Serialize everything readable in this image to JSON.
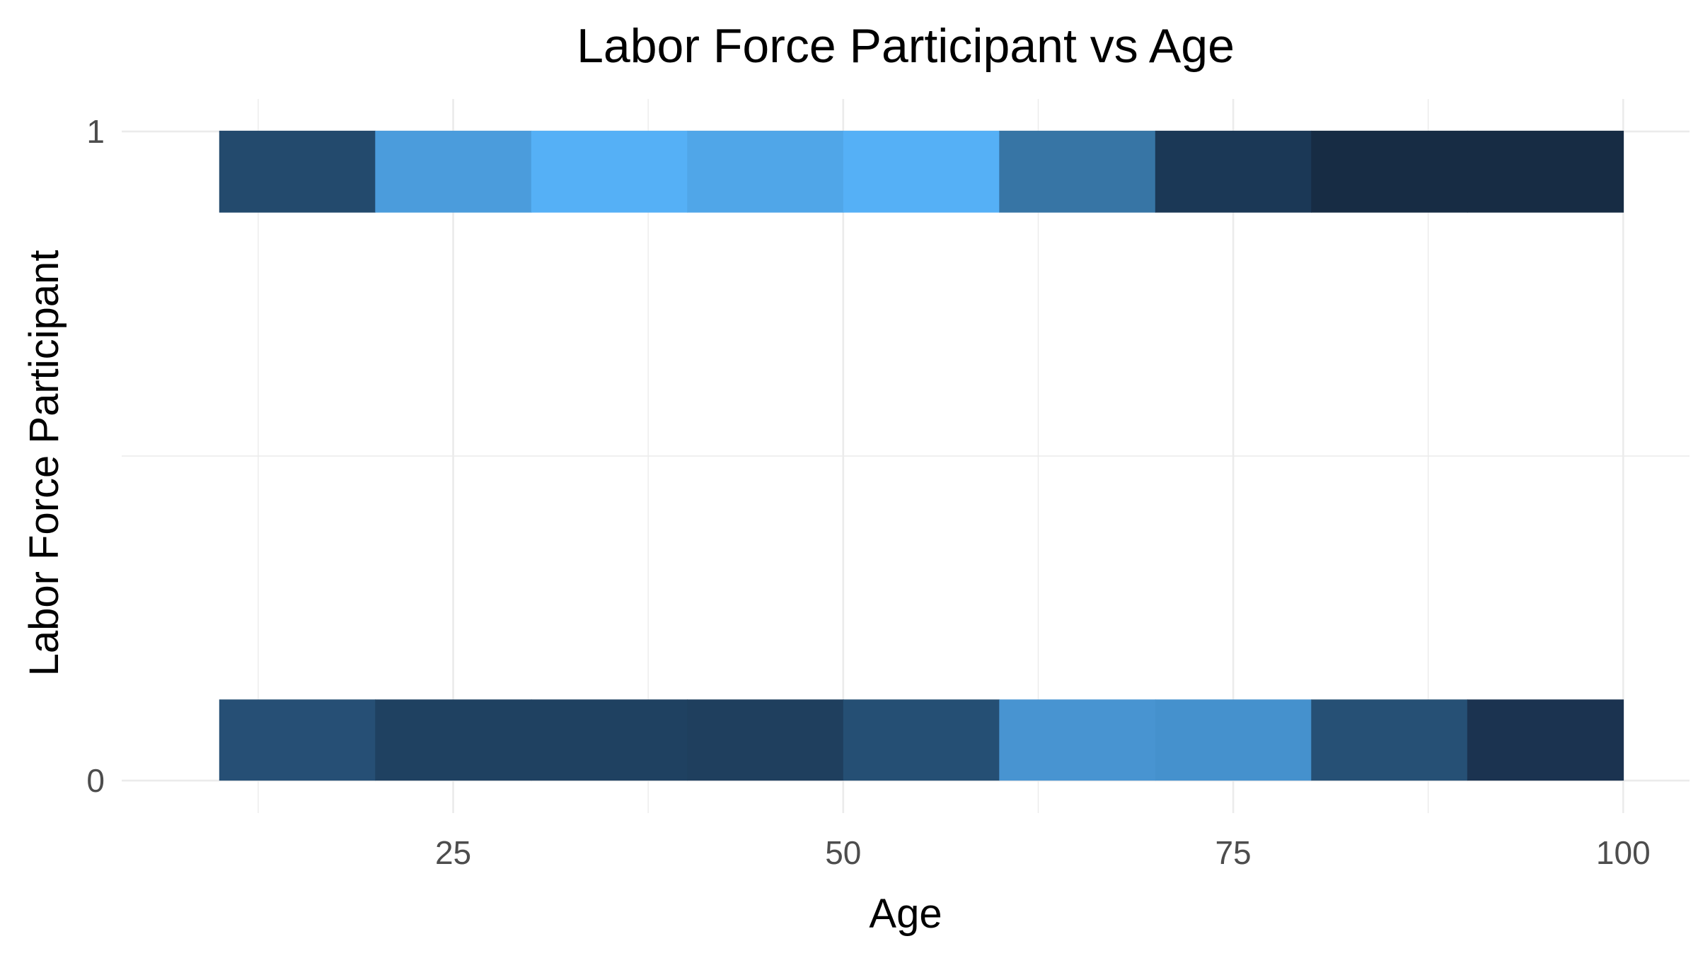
{
  "chart_data": {
    "type": "heatmap",
    "title": "Labor Force Participant vs Age",
    "xlabel": "Age",
    "ylabel": "Labor Force Participant",
    "xlim": [
      3.75,
      104.25
    ],
    "ylim": [
      -0.05,
      1.05
    ],
    "x_ticks": [
      25,
      50,
      75,
      100
    ],
    "x_minor_ticks": [
      12.5,
      37.5,
      62.5,
      87.5
    ],
    "y_ticks": [
      0,
      1
    ],
    "y_minor_ticks": [
      0.5
    ],
    "grid": true,
    "legend": "none",
    "bin_width": 10,
    "tile_height": 0.25,
    "rows": [
      {
        "y": 1,
        "cells": [
          {
            "x_start": 10,
            "x_end": 20,
            "color": "#234a6d"
          },
          {
            "x_start": 20,
            "x_end": 30,
            "color": "#4b9cdc"
          },
          {
            "x_start": 30,
            "x_end": 40,
            "color": "#55b0f6"
          },
          {
            "x_start": 40,
            "x_end": 50,
            "color": "#50a6e8"
          },
          {
            "x_start": 50,
            "x_end": 60,
            "color": "#55b0f6"
          },
          {
            "x_start": 60,
            "x_end": 70,
            "color": "#3775a5"
          },
          {
            "x_start": 70,
            "x_end": 80,
            "color": "#1b3856"
          },
          {
            "x_start": 80,
            "x_end": 90,
            "color": "#172c44"
          },
          {
            "x_start": 90,
            "x_end": 100,
            "color": "#172c44"
          }
        ]
      },
      {
        "y": 0,
        "cells": [
          {
            "x_start": 10,
            "x_end": 20,
            "color": "#264f75"
          },
          {
            "x_start": 20,
            "x_end": 30,
            "color": "#1f4161"
          },
          {
            "x_start": 30,
            "x_end": 40,
            "color": "#1f4161"
          },
          {
            "x_start": 40,
            "x_end": 50,
            "color": "#1f3f5e"
          },
          {
            "x_start": 50,
            "x_end": 60,
            "color": "#254f74"
          },
          {
            "x_start": 60,
            "x_end": 70,
            "color": "#4894d1"
          },
          {
            "x_start": 70,
            "x_end": 80,
            "color": "#4591cd"
          },
          {
            "x_start": 80,
            "x_end": 90,
            "color": "#265075"
          },
          {
            "x_start": 90,
            "x_end": 100,
            "color": "#1b3350"
          }
        ]
      }
    ]
  }
}
